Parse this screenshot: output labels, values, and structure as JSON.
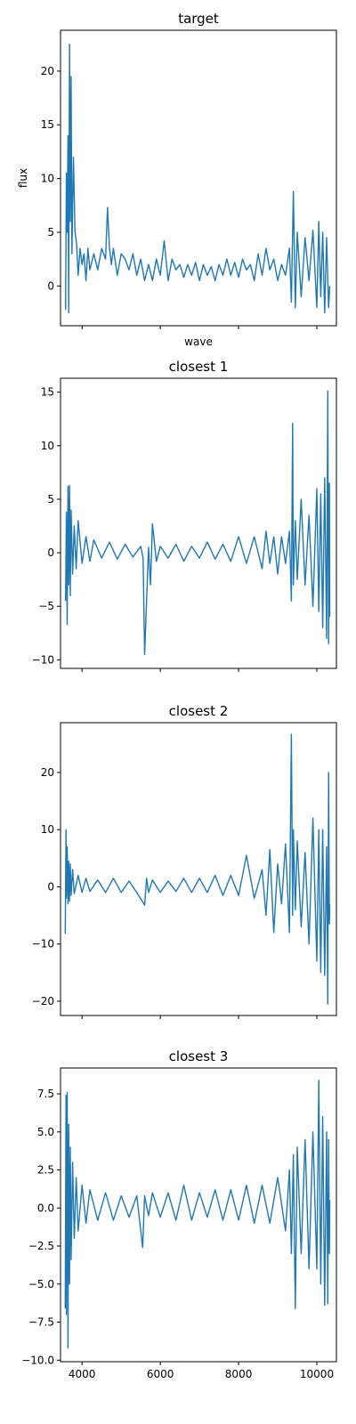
{
  "chart_data": [
    {
      "type": "line",
      "title": "target",
      "xlabel": "wave",
      "ylabel": "flux",
      "xlim": [
        3450,
        10500
      ],
      "ylim": [
        -3.7,
        23.8
      ],
      "yticks": [
        0,
        5,
        10,
        15,
        20
      ],
      "ytick_labels": [
        "0",
        "5",
        "10",
        "15",
        "20"
      ],
      "xticks": [
        4000,
        6000,
        8000,
        10000
      ],
      "xtick_labels": [
        "",
        "",
        "",
        ""
      ],
      "series": [
        {
          "color": "#1f77b4",
          "x": [
            3580,
            3600,
            3620,
            3640,
            3660,
            3680,
            3700,
            3720,
            3740,
            3780,
            3820,
            3860,
            3900,
            3950,
            4000,
            4050,
            4100,
            4150,
            4200,
            4300,
            4400,
            4500,
            4600,
            4650,
            4700,
            4750,
            4800,
            4900,
            5000,
            5100,
            5200,
            5300,
            5400,
            5500,
            5600,
            5700,
            5800,
            5900,
            6000,
            6100,
            6200,
            6300,
            6400,
            6500,
            6600,
            6700,
            6800,
            6900,
            7000,
            7100,
            7200,
            7300,
            7400,
            7500,
            7600,
            7700,
            7800,
            7900,
            8000,
            8100,
            8200,
            8300,
            8400,
            8500,
            8600,
            8700,
            8800,
            8900,
            9000,
            9100,
            9200,
            9300,
            9350,
            9400,
            9450,
            9500,
            9600,
            9700,
            9800,
            9900,
            10000,
            10050,
            10100,
            10150,
            10200,
            10250,
            10300,
            10330
          ],
          "y": [
            -2.2,
            10.5,
            5.0,
            14.0,
            -2.5,
            22.5,
            6.0,
            19.5,
            3.0,
            12.0,
            5.0,
            4.0,
            1.0,
            3.5,
            2.0,
            3.0,
            0.5,
            3.5,
            1.5,
            3.0,
            1.5,
            3.5,
            2.5,
            7.3,
            3.5,
            2.0,
            3.5,
            1.0,
            3.0,
            2.5,
            1.5,
            3.0,
            1.0,
            2.5,
            0.5,
            2.0,
            0.5,
            2.5,
            1.0,
            4.2,
            0.5,
            2.5,
            1.5,
            2.0,
            0.8,
            2.0,
            1.0,
            2.2,
            0.5,
            2.0,
            1.0,
            1.8,
            0.5,
            2.0,
            1.0,
            2.5,
            1.0,
            2.2,
            0.8,
            2.5,
            1.5,
            2.0,
            0.5,
            3.0,
            1.0,
            3.5,
            1.5,
            2.5,
            0.5,
            2.0,
            1.0,
            3.5,
            -1.5,
            8.8,
            -2.0,
            5.0,
            -1.0,
            4.5,
            0.5,
            5.2,
            -2.0,
            6.0,
            -1.0,
            5.0,
            -2.5,
            4.5,
            -2.0,
            0.0
          ]
        }
      ]
    },
    {
      "type": "line",
      "title": "closest 1",
      "xlabel": "",
      "ylabel": "",
      "xlim": [
        3450,
        10500
      ],
      "ylim": [
        -10.8,
        16.3
      ],
      "yticks": [
        -10,
        -5,
        0,
        5,
        10,
        15
      ],
      "ytick_labels": [
        "−10",
        "−5",
        "0",
        "5",
        "10",
        "15"
      ],
      "xticks": [
        4000,
        6000,
        8000,
        10000
      ],
      "xtick_labels": [
        "",
        "",
        "",
        ""
      ],
      "series": [
        {
          "color": "#1f77b4",
          "x": [
            3580,
            3600,
            3620,
            3640,
            3660,
            3680,
            3700,
            3720,
            3760,
            3800,
            3850,
            3900,
            4000,
            4100,
            4200,
            4300,
            4500,
            4700,
            4900,
            5100,
            5300,
            5500,
            5560,
            5600,
            5700,
            5750,
            5800,
            5900,
            6000,
            6200,
            6400,
            6600,
            6800,
            7000,
            7200,
            7400,
            7600,
            7800,
            8000,
            8200,
            8400,
            8600,
            8700,
            8800,
            8900,
            9000,
            9100,
            9200,
            9300,
            9350,
            9380,
            9400,
            9450,
            9500,
            9600,
            9700,
            9800,
            9900,
            10000,
            10050,
            10100,
            10150,
            10200,
            10250,
            10280,
            10300,
            10320,
            10330
          ],
          "y": [
            -4.5,
            3.8,
            -6.7,
            6.2,
            -3.0,
            6.3,
            -4.0,
            4.0,
            -2.0,
            2.5,
            -1.5,
            3.0,
            -1.0,
            1.5,
            -0.8,
            1.2,
            -0.5,
            1.0,
            -0.6,
            0.8,
            -0.4,
            0.6,
            -0.5,
            -9.5,
            0.5,
            -3.0,
            2.7,
            -0.8,
            0.6,
            -0.5,
            0.8,
            -0.8,
            0.6,
            -0.5,
            1.0,
            -0.6,
            0.8,
            -0.8,
            1.5,
            -1.0,
            1.5,
            -1.5,
            2.0,
            -1.0,
            1.5,
            -2.0,
            1.5,
            -1.0,
            2.0,
            -4.5,
            12.1,
            -3.0,
            3.0,
            -2.5,
            5.0,
            -3.0,
            3.5,
            -5.0,
            6.0,
            -5.5,
            5.5,
            -7.0,
            7.0,
            -8.0,
            15.1,
            -8.5,
            6.5,
            -6.0
          ]
        }
      ]
    },
    {
      "type": "line",
      "title": "closest 2",
      "xlabel": "",
      "ylabel": "",
      "xlim": [
        3450,
        10500
      ],
      "ylim": [
        -22.5,
        28.7
      ],
      "yticks": [
        -20,
        -10,
        0,
        10,
        20
      ],
      "ytick_labels": [
        "−20",
        "−10",
        "0",
        "10",
        "20"
      ],
      "xticks": [
        4000,
        6000,
        8000,
        10000
      ],
      "xtick_labels": [
        "",
        "",
        "",
        ""
      ],
      "series": [
        {
          "color": "#1f77b4",
          "x": [
            3570,
            3590,
            3600,
            3620,
            3640,
            3660,
            3680,
            3700,
            3720,
            3760,
            3800,
            3900,
            4000,
            4100,
            4200,
            4400,
            4600,
            4800,
            5000,
            5200,
            5400,
            5600,
            5650,
            5700,
            5800,
            6000,
            6200,
            6400,
            6600,
            6800,
            7000,
            7200,
            7400,
            7600,
            7800,
            8000,
            8200,
            8400,
            8600,
            8700,
            8800,
            8900,
            9000,
            9100,
            9200,
            9300,
            9350,
            9380,
            9400,
            9450,
            9500,
            9600,
            9700,
            9800,
            9900,
            10000,
            10050,
            10100,
            10150,
            10200,
            10250,
            10280,
            10300,
            10320,
            10330
          ],
          "y": [
            -8.2,
            10.0,
            -2.0,
            7.0,
            -3.0,
            4.5,
            -2.5,
            4.0,
            -1.5,
            3.0,
            -1.2,
            2.0,
            -1.0,
            1.5,
            -0.8,
            1.2,
            -1.0,
            1.5,
            -1.0,
            1.0,
            -1.0,
            -3.2,
            1.5,
            -1.0,
            1.2,
            -1.0,
            1.0,
            -0.8,
            1.5,
            -1.0,
            1.5,
            -1.0,
            2.0,
            -1.5,
            2.0,
            -1.5,
            5.5,
            -2.0,
            3.0,
            -5.0,
            6.5,
            -8.0,
            4.0,
            -3.0,
            7.5,
            -8.0,
            26.7,
            -5.0,
            10.0,
            -4.0,
            8.0,
            -7.0,
            6.0,
            -10.0,
            12.0,
            -13.0,
            10.0,
            -15.0,
            10.0,
            -15.5,
            7.0,
            -20.5,
            20.0,
            -6.5,
            -3.0
          ]
        }
      ]
    },
    {
      "type": "line",
      "title": "closest 3",
      "xlabel": "",
      "ylabel": "",
      "xlim": [
        3450,
        10500
      ],
      "ylim": [
        -10.1,
        9.2
      ],
      "yticks": [
        -10.0,
        -7.5,
        -5.0,
        -2.5,
        0.0,
        2.5,
        5.0,
        7.5
      ],
      "ytick_labels": [
        "−10.0",
        "−7.5",
        "−5.0",
        "−2.5",
        "0.0",
        "2.5",
        "5.0",
        "7.5"
      ],
      "xticks": [
        4000,
        6000,
        8000,
        10000
      ],
      "xtick_labels": [
        "4000",
        "6000",
        "8000",
        "10000"
      ],
      "series": [
        {
          "color": "#1f77b4",
          "x": [
            3570,
            3590,
            3600,
            3620,
            3640,
            3660,
            3680,
            3700,
            3720,
            3760,
            3800,
            3850,
            3900,
            4000,
            4100,
            4200,
            4400,
            4600,
            4800,
            5000,
            5200,
            5400,
            5550,
            5600,
            5700,
            5800,
            6000,
            6200,
            6400,
            6600,
            6800,
            7000,
            7200,
            7400,
            7600,
            7800,
            8000,
            8200,
            8400,
            8600,
            8800,
            9000,
            9200,
            9300,
            9350,
            9400,
            9450,
            9500,
            9600,
            9700,
            9800,
            9900,
            10000,
            10050,
            10100,
            10150,
            10200,
            10250,
            10280,
            10300,
            10320,
            10330
          ],
          "y": [
            -6.6,
            7.4,
            -7.0,
            7.6,
            -9.2,
            5.5,
            -5.0,
            4.0,
            -3.4,
            3.0,
            -2.0,
            2.0,
            -1.5,
            1.5,
            -1.0,
            1.2,
            -0.8,
            1.0,
            -0.8,
            0.8,
            -0.6,
            0.8,
            -2.6,
            0.8,
            -0.5,
            1.0,
            -0.6,
            1.0,
            -0.8,
            1.5,
            -0.8,
            1.0,
            -0.6,
            1.2,
            -0.8,
            1.2,
            -0.8,
            1.5,
            -1.0,
            1.5,
            -1.0,
            2.0,
            -1.5,
            2.5,
            -3.0,
            3.5,
            -6.6,
            4.0,
            -3.0,
            4.5,
            -4.0,
            5.0,
            -4.0,
            8.4,
            -5.0,
            6.0,
            -6.4,
            5.0,
            -6.3,
            4.5,
            -3.0,
            0.5
          ]
        }
      ]
    }
  ]
}
